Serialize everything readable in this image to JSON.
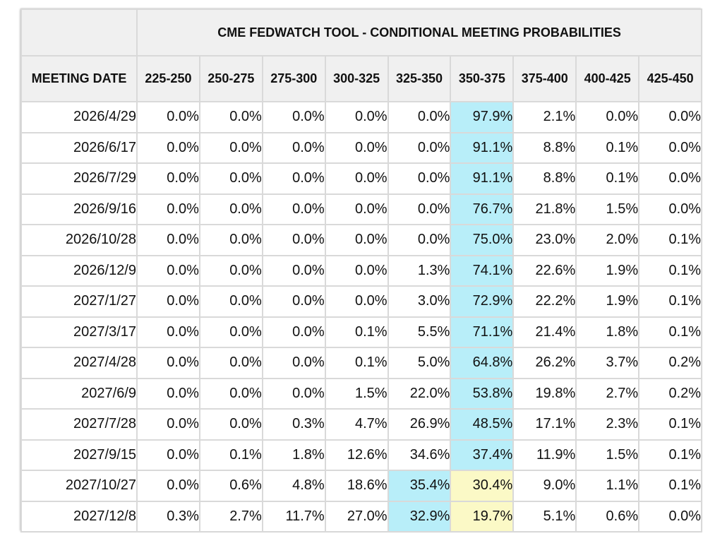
{
  "title": "CME FEDWATCH TOOL - CONDITIONAL MEETING PROBABILITIES",
  "date_header": "MEETING DATE",
  "colors": {
    "header_bg": "#f0f0f0",
    "highlight_max": "#b8eef9",
    "highlight_second": "#fbf9c6",
    "grid": "#d9d9d9"
  },
  "chart_data": {
    "type": "table",
    "title": "CME FEDWATCH TOOL - CONDITIONAL MEETING PROBABILITIES",
    "row_header": "MEETING DATE",
    "columns": [
      "225-250",
      "250-275",
      "275-300",
      "300-325",
      "325-350",
      "350-375",
      "375-400",
      "400-425",
      "425-450"
    ],
    "rows": [
      {
        "date": "2026/4/29",
        "values": [
          "0.0%",
          "0.0%",
          "0.0%",
          "0.0%",
          "0.0%",
          "97.9%",
          "2.1%",
          "0.0%",
          "0.0%"
        ],
        "highlight": {
          "5": "max"
        }
      },
      {
        "date": "2026/6/17",
        "values": [
          "0.0%",
          "0.0%",
          "0.0%",
          "0.0%",
          "0.0%",
          "91.1%",
          "8.8%",
          "0.1%",
          "0.0%"
        ],
        "highlight": {
          "5": "max"
        }
      },
      {
        "date": "2026/7/29",
        "values": [
          "0.0%",
          "0.0%",
          "0.0%",
          "0.0%",
          "0.0%",
          "91.1%",
          "8.8%",
          "0.1%",
          "0.0%"
        ],
        "highlight": {
          "5": "max"
        }
      },
      {
        "date": "2026/9/16",
        "values": [
          "0.0%",
          "0.0%",
          "0.0%",
          "0.0%",
          "0.0%",
          "76.7%",
          "21.8%",
          "1.5%",
          "0.0%"
        ],
        "highlight": {
          "5": "max"
        }
      },
      {
        "date": "2026/10/28",
        "values": [
          "0.0%",
          "0.0%",
          "0.0%",
          "0.0%",
          "0.0%",
          "75.0%",
          "23.0%",
          "2.0%",
          "0.1%"
        ],
        "highlight": {
          "5": "max"
        }
      },
      {
        "date": "2026/12/9",
        "values": [
          "0.0%",
          "0.0%",
          "0.0%",
          "0.0%",
          "1.3%",
          "74.1%",
          "22.6%",
          "1.9%",
          "0.1%"
        ],
        "highlight": {
          "5": "max"
        }
      },
      {
        "date": "2027/1/27",
        "values": [
          "0.0%",
          "0.0%",
          "0.0%",
          "0.0%",
          "3.0%",
          "72.9%",
          "22.2%",
          "1.9%",
          "0.1%"
        ],
        "highlight": {
          "5": "max"
        }
      },
      {
        "date": "2027/3/17",
        "values": [
          "0.0%",
          "0.0%",
          "0.0%",
          "0.1%",
          "5.5%",
          "71.1%",
          "21.4%",
          "1.8%",
          "0.1%"
        ],
        "highlight": {
          "5": "max"
        }
      },
      {
        "date": "2027/4/28",
        "values": [
          "0.0%",
          "0.0%",
          "0.0%",
          "0.1%",
          "5.0%",
          "64.8%",
          "26.2%",
          "3.7%",
          "0.2%"
        ],
        "highlight": {
          "5": "max"
        }
      },
      {
        "date": "2027/6/9",
        "values": [
          "0.0%",
          "0.0%",
          "0.0%",
          "1.5%",
          "22.0%",
          "53.8%",
          "19.8%",
          "2.7%",
          "0.2%"
        ],
        "highlight": {
          "5": "max"
        }
      },
      {
        "date": "2027/7/28",
        "values": [
          "0.0%",
          "0.0%",
          "0.3%",
          "4.7%",
          "26.9%",
          "48.5%",
          "17.1%",
          "2.3%",
          "0.1%"
        ],
        "highlight": {
          "5": "max"
        }
      },
      {
        "date": "2027/9/15",
        "values": [
          "0.0%",
          "0.1%",
          "1.8%",
          "12.6%",
          "34.6%",
          "37.4%",
          "11.9%",
          "1.5%",
          "0.1%"
        ],
        "highlight": {
          "5": "max"
        }
      },
      {
        "date": "2027/10/27",
        "values": [
          "0.0%",
          "0.6%",
          "4.8%",
          "18.6%",
          "35.4%",
          "30.4%",
          "9.0%",
          "1.1%",
          "0.1%"
        ],
        "highlight": {
          "4": "max",
          "5": "second"
        }
      },
      {
        "date": "2027/12/8",
        "values": [
          "0.3%",
          "2.7%",
          "11.7%",
          "27.0%",
          "32.9%",
          "19.7%",
          "5.1%",
          "0.6%",
          "0.0%"
        ],
        "highlight": {
          "4": "max",
          "5": "second"
        }
      }
    ]
  }
}
